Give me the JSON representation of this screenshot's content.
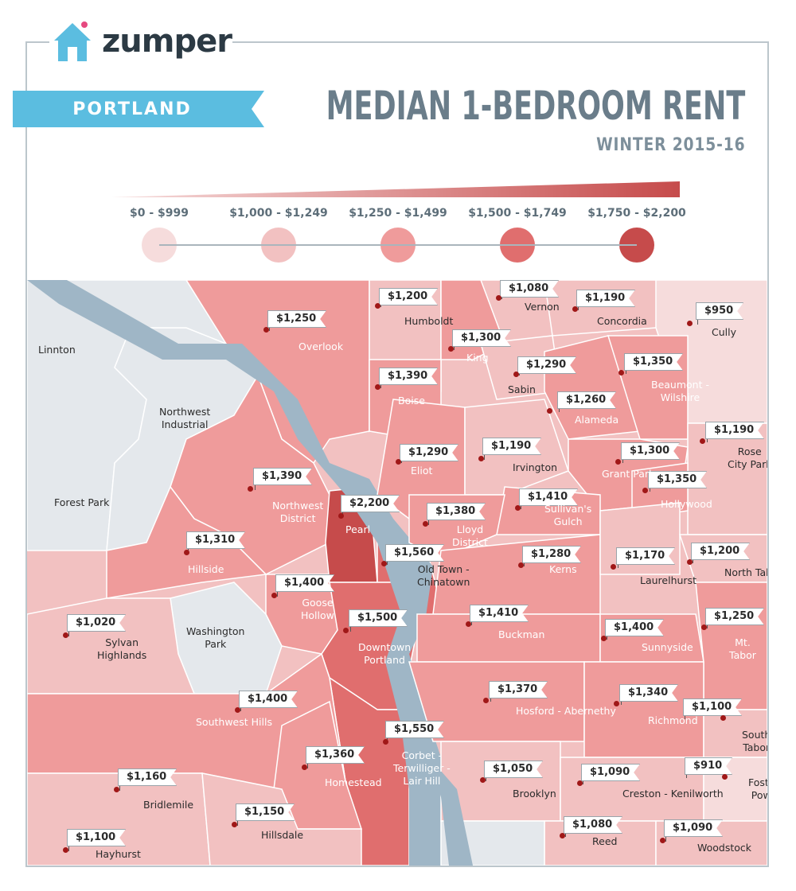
{
  "brand": {
    "name": "zumper"
  },
  "header": {
    "city": "PORTLAND",
    "title": "MEDIAN 1-BEDROOM RENT",
    "subtitle": "WINTER 2015-16"
  },
  "legend": [
    {
      "label": "$0 - $999",
      "color": "#f6dcdc"
    },
    {
      "label": "$1,000 - $1,249",
      "color": "#f2c1c1"
    },
    {
      "label": "$1,250 - $1,499",
      "color": "#ef9b9b"
    },
    {
      "label": "$1,500 - $1,749",
      "color": "#e06e6e"
    },
    {
      "label": "$1,750 - $2,200",
      "color": "#c64b4b"
    }
  ],
  "colors": {
    "water": "#9fb6c6",
    "unlisted": "#e4e8ec",
    "ribbon": "#5bbde0",
    "accent": "#c64b4b"
  },
  "neighborhoods": [
    {
      "name": "Vernon",
      "price": "$1,080"
    },
    {
      "name": "Humboldt",
      "price": "$1,200"
    },
    {
      "name": "Concordia",
      "price": "$1,190"
    },
    {
      "name": "Overlook",
      "price": "$1,250"
    },
    {
      "name": "Cully",
      "price": "$950"
    },
    {
      "name": "King",
      "price": "$1,300"
    },
    {
      "name": "Sabin",
      "price": "$1,290"
    },
    {
      "name": "Beaumont - Wilshire",
      "price": "$1,350"
    },
    {
      "name": "Boise",
      "price": "$1,390"
    },
    {
      "name": "Alameda",
      "price": "$1,260"
    },
    {
      "name": "Eliot",
      "price": "$1,290"
    },
    {
      "name": "Irvington",
      "price": "$1,190"
    },
    {
      "name": "Rose City Park",
      "price": "$1,190"
    },
    {
      "name": "Grant Park",
      "price": "$1,300"
    },
    {
      "name": "Northwest District",
      "price": "$1,390"
    },
    {
      "name": "Hollywood",
      "price": "$1,350"
    },
    {
      "name": "Pearl",
      "price": "$2,200"
    },
    {
      "name": "Sullivan's Gulch",
      "price": "$1,410"
    },
    {
      "name": "Lloyd District",
      "price": "$1,380"
    },
    {
      "name": "Hillside",
      "price": "$1,310"
    },
    {
      "name": "Old Town - Chinatown",
      "price": "$1,560"
    },
    {
      "name": "Kerns",
      "price": "$1,280"
    },
    {
      "name": "Laurelhurst",
      "price": "$1,170"
    },
    {
      "name": "North Tabor",
      "price": "$1,200"
    },
    {
      "name": "Goose Hollow",
      "price": "$1,400"
    },
    {
      "name": "Downtown Portland",
      "price": "$1,500"
    },
    {
      "name": "Buckman",
      "price": "$1,410"
    },
    {
      "name": "Sunnyside",
      "price": "$1,400"
    },
    {
      "name": "Mt. Tabor",
      "price": "$1,250"
    },
    {
      "name": "Sylvan Highlands",
      "price": "$1,020"
    },
    {
      "name": "Hosford - Abernethy",
      "price": "$1,370"
    },
    {
      "name": "Richmond",
      "price": "$1,340"
    },
    {
      "name": "Southwest Hills",
      "price": "$1,400"
    },
    {
      "name": "South Tabor",
      "price": "$1,100"
    },
    {
      "name": "Corbet - Terwilliger - Lair Hill",
      "price": "$1,550"
    },
    {
      "name": "Homestead",
      "price": "$1,360"
    },
    {
      "name": "Brooklyn",
      "price": "$1,050"
    },
    {
      "name": "Creston - Kenilworth",
      "price": "$1,090"
    },
    {
      "name": "Foster - Powell",
      "price": "$910"
    },
    {
      "name": "Bridlemile",
      "price": "$1,160"
    },
    {
      "name": "Hillsdale",
      "price": "$1,150"
    },
    {
      "name": "Reed",
      "price": "$1,080"
    },
    {
      "name": "Woodstock",
      "price": "$1,090"
    },
    {
      "name": "Hayhurst",
      "price": "$1,100"
    }
  ],
  "unpriced_areas": [
    "Linnton",
    "Northwest Industrial",
    "Forest Park",
    "Washington Park"
  ]
}
